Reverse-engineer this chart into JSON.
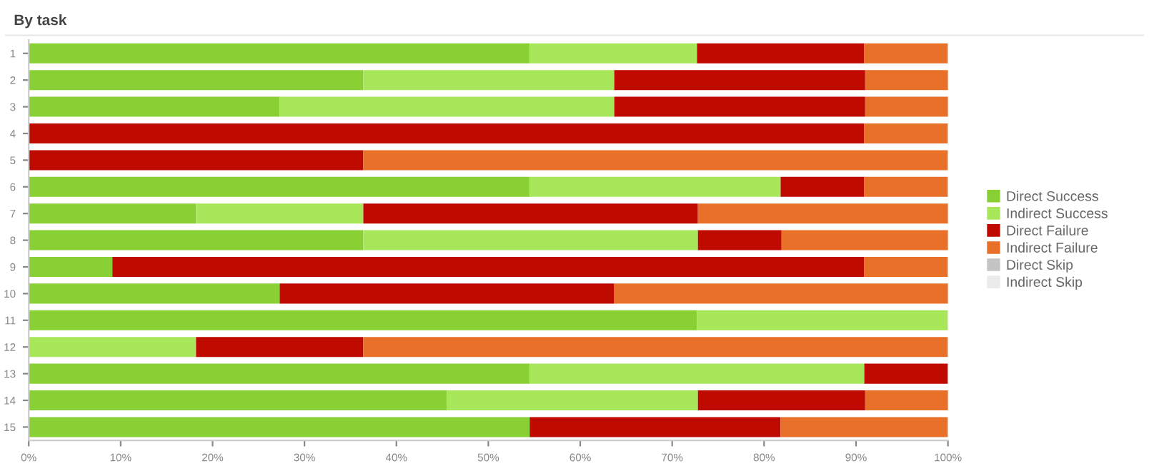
{
  "chart_data": {
    "type": "bar",
    "title": "By task",
    "orientation": "horizontal",
    "stacked": true,
    "categories": [
      "1",
      "2",
      "3",
      "4",
      "5",
      "6",
      "7",
      "8",
      "9",
      "10",
      "11",
      "12",
      "13",
      "14",
      "15"
    ],
    "series": [
      {
        "name": "Direct Success",
        "color": "#88d033",
        "values": [
          54.5,
          36.4,
          27.3,
          0,
          0,
          54.5,
          18.2,
          36.4,
          9.1,
          27.3,
          72.7,
          0,
          54.5,
          45.5,
          54.5
        ]
      },
      {
        "name": "Indirect Success",
        "color": "#a8e65a",
        "values": [
          18.2,
          27.3,
          36.4,
          0,
          0,
          27.3,
          18.2,
          36.4,
          0,
          0,
          27.3,
          18.2,
          36.4,
          27.3,
          0
        ]
      },
      {
        "name": "Direct Failure",
        "color": "#bf0a00",
        "values": [
          18.2,
          27.3,
          27.3,
          90.9,
          36.4,
          9.1,
          36.4,
          9.1,
          81.8,
          36.4,
          0,
          18.2,
          9.1,
          18.2,
          27.3
        ]
      },
      {
        "name": "Indirect Failure",
        "color": "#e87028",
        "values": [
          9.1,
          9.1,
          9.1,
          9.1,
          63.6,
          9.1,
          27.3,
          18.2,
          9.1,
          36.4,
          0,
          63.6,
          0,
          9.1,
          18.2
        ]
      },
      {
        "name": "Direct Skip",
        "color": "#c4c4c4",
        "values": [
          0,
          0,
          0,
          0,
          0,
          0,
          0,
          0,
          0,
          0,
          0,
          0,
          0,
          0,
          0
        ]
      },
      {
        "name": "Indirect Skip",
        "color": "#ebebeb",
        "values": [
          0,
          0,
          0,
          0,
          0,
          0,
          0,
          0,
          0,
          0,
          0,
          0,
          0,
          0,
          0
        ]
      }
    ],
    "xlim": [
      0,
      100
    ],
    "xticks": [
      {
        "value": 0,
        "label": "0%"
      },
      {
        "value": 10,
        "label": "10%"
      },
      {
        "value": 20,
        "label": "20%"
      },
      {
        "value": 30,
        "label": "30%"
      },
      {
        "value": 40,
        "label": "40%"
      },
      {
        "value": 50,
        "label": "50%"
      },
      {
        "value": 60,
        "label": "60%"
      },
      {
        "value": 70,
        "label": "70%"
      },
      {
        "value": 80,
        "label": "80%"
      },
      {
        "value": 90,
        "label": "90%"
      },
      {
        "value": 100,
        "label": "100%"
      }
    ],
    "grid": false,
    "legend": "right"
  }
}
